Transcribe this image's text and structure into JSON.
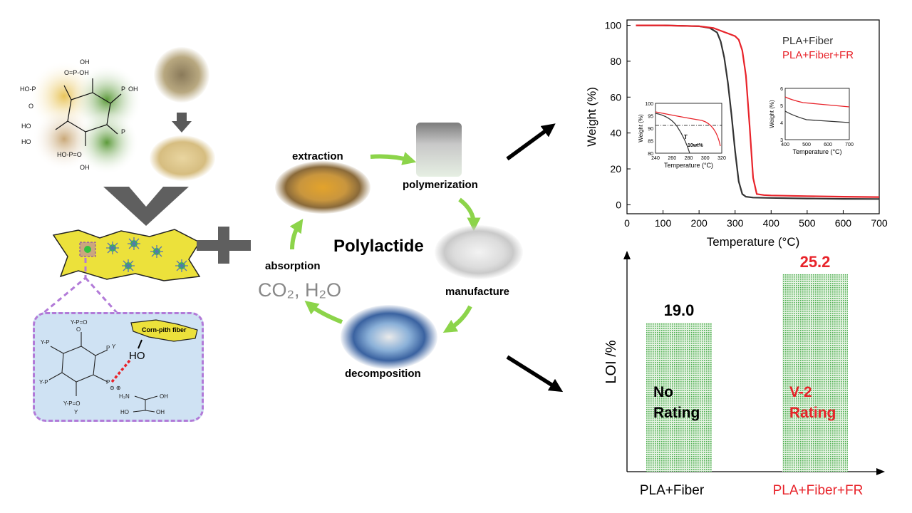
{
  "cycle": {
    "center_title": "Polylactide",
    "steps": [
      {
        "label": "extraction"
      },
      {
        "label": "polymerization"
      },
      {
        "label": "manufacture"
      },
      {
        "label": "decomposition"
      },
      {
        "label": "absorption"
      }
    ],
    "absorbed_species": "CO₂, H₂O"
  },
  "phosphate_molecule": {
    "labels": [
      "OH",
      "O=P-OH",
      "HO-P",
      "O",
      "OH",
      "HO",
      "HO",
      "O=P-OH",
      "OH"
    ]
  },
  "fiber_callout": {
    "fiber_label": "Corn-pith fiber",
    "hydroxyl": "HO",
    "y_labels": [
      "Y",
      "O=P",
      "Y",
      "Y",
      "Y",
      "O",
      "O",
      "Y",
      "Y",
      "P",
      "Y",
      "O",
      "O",
      "Y",
      "P=O",
      "Y",
      "H₃N",
      "OH",
      "HO",
      "OH",
      "⊖ ⊕"
    ]
  },
  "tga_chart": {
    "legend": [
      "PLA+Fiber",
      "PLA+Fiber+FR"
    ],
    "colors": [
      "#333333",
      "#e8232a"
    ],
    "inset1": {
      "ylabel": "Weight (%)",
      "xlabel": "Temperature (°C)",
      "annotation_t": "T",
      "annotation_pct": "10wt%",
      "xticks": [
        "240",
        "260",
        "280",
        "300",
        "320"
      ],
      "yticks": [
        "100",
        "95",
        "90",
        "85",
        "80"
      ]
    },
    "inset2": {
      "ylabel": "Weight (%)",
      "xlabel": "Temperature (°C)",
      "xticks": [
        "400",
        "500",
        "600",
        "700"
      ],
      "yticks": [
        "6",
        "5",
        "4",
        "3"
      ]
    }
  },
  "chart_data": [
    {
      "type": "line",
      "title": "",
      "xlabel": "Temperature (°C)",
      "ylabel": "Weight (%)",
      "xlim": [
        0,
        700
      ],
      "ylim": [
        -5,
        103
      ],
      "xticks": [
        0,
        100,
        200,
        300,
        400,
        500,
        600,
        700
      ],
      "yticks": [
        0,
        20,
        40,
        60,
        80,
        100
      ],
      "series": [
        {
          "name": "PLA+Fiber",
          "color": "#333333",
          "x": [
            25,
            100,
            200,
            230,
            250,
            260,
            270,
            280,
            290,
            300,
            310,
            320,
            330,
            350,
            400,
            500,
            600,
            700
          ],
          "y": [
            100,
            100,
            99.5,
            98.5,
            96,
            91,
            82,
            68,
            50,
            30,
            13,
            6,
            4.5,
            4,
            3.8,
            3.5,
            3.3,
            3.2
          ]
        },
        {
          "name": "PLA+Fiber+FR",
          "color": "#e8232a",
          "x": [
            25,
            100,
            200,
            240,
            260,
            280,
            300,
            310,
            320,
            330,
            340,
            350,
            360,
            380,
            400,
            500,
            600,
            700
          ],
          "y": [
            100,
            100,
            99.5,
            98.5,
            97,
            95.5,
            94,
            92,
            86,
            72,
            45,
            15,
            6,
            5.4,
            5.2,
            4.8,
            4.5,
            4.3
          ]
        }
      ]
    },
    {
      "type": "bar",
      "title": "",
      "xlabel": "",
      "ylabel": "LOI /%",
      "categories": [
        "PLA+Fiber",
        "PLA+Fiber+FR"
      ],
      "values": [
        19.0,
        25.2
      ],
      "value_labels": [
        "19.0",
        "25.2"
      ],
      "ratings": [
        "No\nRating",
        "V-2\nRating"
      ],
      "rating_lines": [
        [
          "No",
          "Rating"
        ],
        [
          "V-2",
          "Rating"
        ]
      ],
      "category_colors": [
        "#000000",
        "#e8232a"
      ],
      "ylim": [
        0,
        28
      ]
    }
  ]
}
